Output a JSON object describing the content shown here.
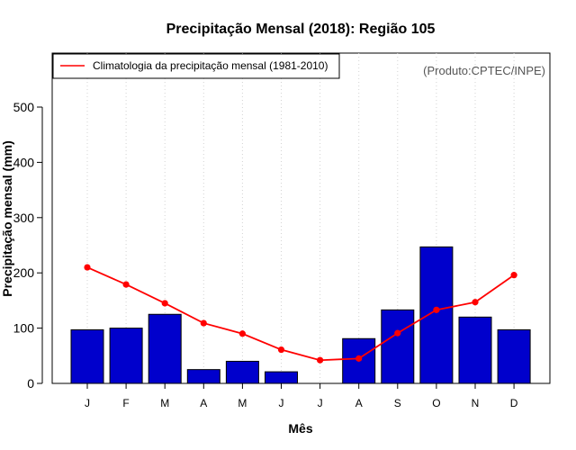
{
  "chart_data": {
    "type": "bar",
    "title": "Precipitação Mensal (2018): Região 105",
    "xlabel": "Mês",
    "ylabel": "Precipitação mensal (mm)",
    "ylim": [
      0,
      590
    ],
    "yticks": [
      0,
      100,
      200,
      300,
      400,
      500
    ],
    "categories": [
      "J",
      "F",
      "M",
      "A",
      "M",
      "J",
      "J",
      "A",
      "S",
      "O",
      "N",
      "D"
    ],
    "series": [
      {
        "name": "Precipitação mensal 2018",
        "type": "bar",
        "color": "#0000cc",
        "values": [
          97,
          100,
          125,
          25,
          40,
          21,
          0,
          81,
          133,
          247,
          120,
          97
        ]
      },
      {
        "name": "Climatologia da precipitação mensal (1981-2010)",
        "type": "line",
        "color": "#ff0000",
        "values": [
          210,
          179,
          145,
          109,
          90,
          61,
          42,
          45,
          91,
          133,
          147,
          196
        ]
      }
    ],
    "legend": {
      "position": "top-left",
      "entries": [
        "Climatologia da precipitação mensal (1981-2010)"
      ]
    },
    "annotation": "(Produto:CPTEC/INPE)",
    "grid": "vertical dotted"
  }
}
